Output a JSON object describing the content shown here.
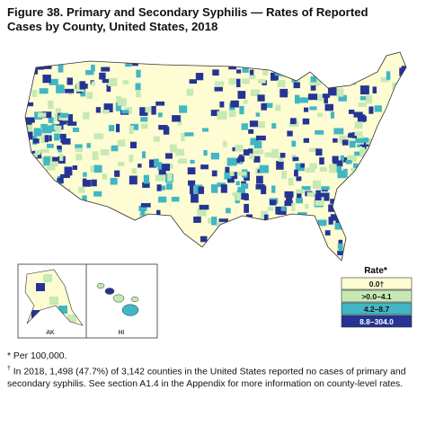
{
  "title": [
    "Figure 38. Primary and Secondary Syphilis — Rates of Reported",
    "Cases by County, United States, 2018"
  ],
  "insets": [
    "AK",
    "HI"
  ],
  "legend": {
    "title": "Rate*",
    "entries": [
      {
        "label": "0.0†",
        "color": "#fdfcd2"
      },
      {
        "label": ">0.0–4.1",
        "color": "#c7e9b4"
      },
      {
        "label": "4.2–8.7",
        "color": "#41b6c4"
      },
      {
        "label": "8.8–304.0",
        "color": "#253494"
      }
    ]
  },
  "footnotes": [
    "* Per 100,000.",
    {
      "marker": "†",
      "text": "In 2018, 1,498 (47.7%) of 3,142 counties in the United States reported no cases of primary and secondary syphilis. See section A1.4 in the Appendix for more information on county-level rates."
    }
  ]
}
